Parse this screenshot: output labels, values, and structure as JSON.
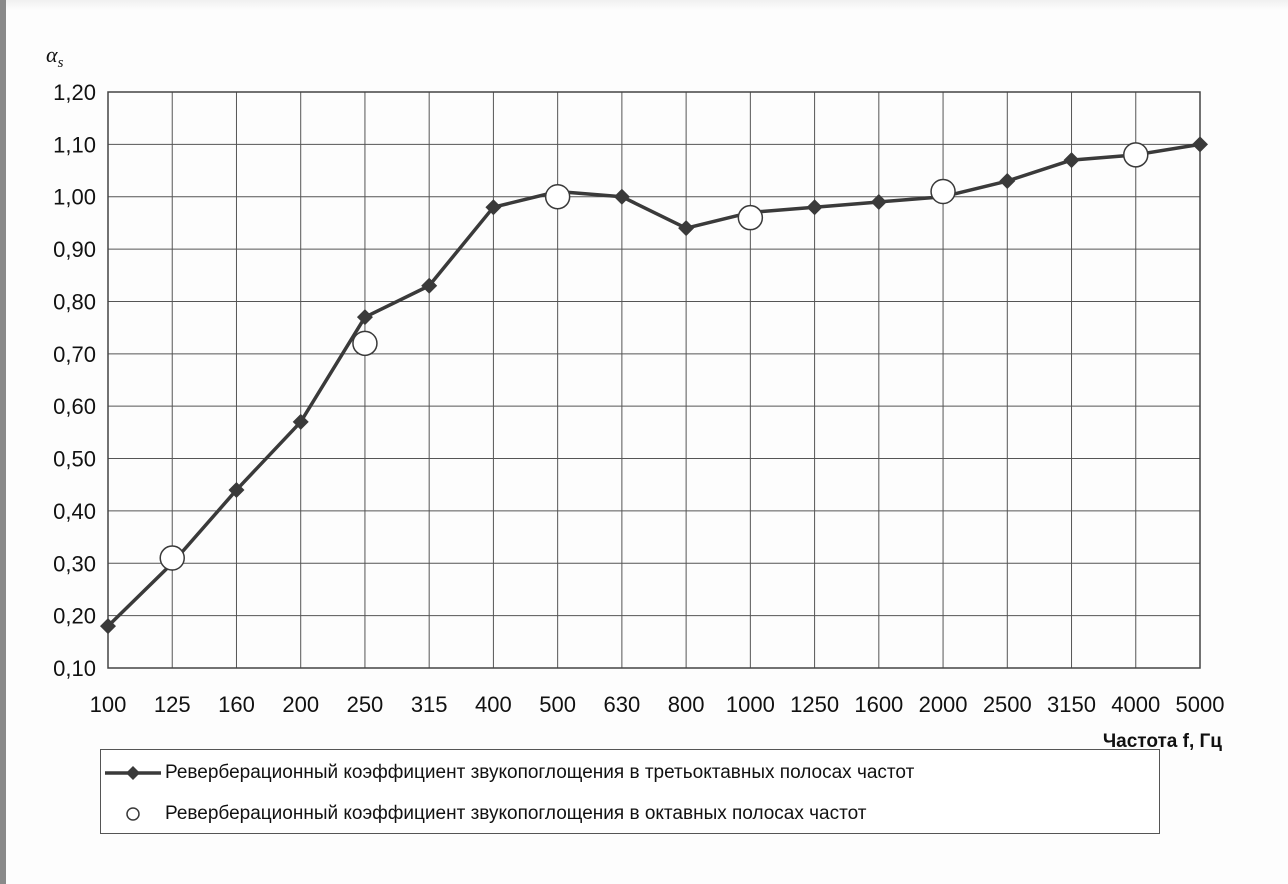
{
  "chart_data": {
    "type": "line",
    "ylabel": "α_s",
    "xlabel": "Частота f, Гц",
    "ylim": [
      0.1,
      1.2
    ],
    "yticks": [
      "0,10",
      "0,20",
      "0,30",
      "0,40",
      "0,50",
      "0,60",
      "0,70",
      "0,80",
      "0,90",
      "1,00",
      "1,10",
      "1,20"
    ],
    "categories": [
      "100",
      "125",
      "160",
      "200",
      "250",
      "315",
      "400",
      "500",
      "630",
      "800",
      "1000",
      "1250",
      "1600",
      "2000",
      "2500",
      "3150",
      "4000",
      "5000"
    ],
    "grid": true,
    "legend_position": "bottom",
    "series": [
      {
        "name": "Реверберационный коэффициент звукопоглощения в третьоктавных полосах частот",
        "marker": "diamond",
        "line": true,
        "color": "#3a3a3a",
        "x": [
          "100",
          "125",
          "160",
          "200",
          "250",
          "315",
          "400",
          "500",
          "630",
          "800",
          "1000",
          "1250",
          "1600",
          "2000",
          "2500",
          "3150",
          "4000",
          "5000"
        ],
        "values": [
          0.18,
          0.3,
          0.44,
          0.57,
          0.77,
          0.83,
          0.98,
          1.01,
          1.0,
          0.94,
          0.97,
          0.98,
          0.99,
          1.0,
          1.03,
          1.07,
          1.08,
          1.1
        ]
      },
      {
        "name": "Реверберационный коэффициент звукопоглощения в октавных полосах частот",
        "marker": "open-circle",
        "line": false,
        "color": "#3a3a3a",
        "x": [
          "125",
          "250",
          "500",
          "1000",
          "2000",
          "4000"
        ],
        "values": [
          0.31,
          0.72,
          1.0,
          0.96,
          1.01,
          1.08
        ]
      }
    ]
  }
}
